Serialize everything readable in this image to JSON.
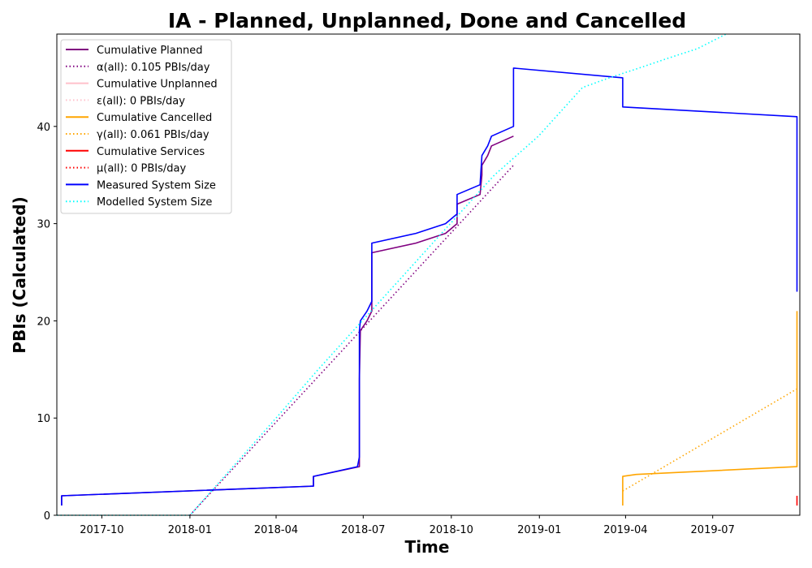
{
  "chart_data": {
    "type": "line",
    "title": "IA - Planned, Unplanned, Done  and Cancelled",
    "xlabel": "Time",
    "ylabel": "PBIs (Calculated)",
    "x_range": [
      "2017-08-15",
      "2019-09-30"
    ],
    "ylim": [
      0,
      49.5
    ],
    "x_ticks": [
      {
        "date": "2017-10-01",
        "label": "2017-10"
      },
      {
        "date": "2018-01-01",
        "label": "2018-01"
      },
      {
        "date": "2018-04-01",
        "label": "2018-04"
      },
      {
        "date": "2018-07-01",
        "label": "2018-07"
      },
      {
        "date": "2018-10-01",
        "label": "2018-10"
      },
      {
        "date": "2019-01-01",
        "label": "2019-01"
      },
      {
        "date": "2019-04-01",
        "label": "2019-04"
      },
      {
        "date": "2019-07-01",
        "label": "2019-07"
      }
    ],
    "y_ticks": [
      0,
      10,
      20,
      30,
      40
    ],
    "grid": false,
    "legend_position": "top-left",
    "series": [
      {
        "name": "Cumulative Planned",
        "style": "solid",
        "color": "#800080",
        "points": [
          [
            "2017-08-20",
            1
          ],
          [
            "2017-08-20",
            2
          ],
          [
            "2018-05-10",
            3
          ],
          [
            "2018-05-10",
            4
          ],
          [
            "2018-06-27",
            5
          ],
          [
            "2018-06-27",
            14
          ],
          [
            "2018-06-28",
            19
          ],
          [
            "2018-07-05",
            20
          ],
          [
            "2018-07-10",
            21
          ],
          [
            "2018-07-10",
            27
          ],
          [
            "2018-08-25",
            28
          ],
          [
            "2018-09-25",
            29
          ],
          [
            "2018-10-07",
            30
          ],
          [
            "2018-10-07",
            32
          ],
          [
            "2018-10-31",
            33
          ],
          [
            "2018-11-02",
            35
          ],
          [
            "2018-11-02",
            36
          ],
          [
            "2018-11-08",
            37
          ],
          [
            "2018-11-12",
            38
          ],
          [
            "2018-12-05",
            39
          ]
        ]
      },
      {
        "name": "α(all): 0.105 PBIs/day",
        "style": "dotted",
        "color": "#800080",
        "points": [
          [
            "2018-01-01",
            0
          ],
          [
            "2018-12-05",
            36
          ]
        ]
      },
      {
        "name": "Cumulative Unplanned",
        "style": "solid",
        "color": "#ffc0cb",
        "points": []
      },
      {
        "name": "ε(all): 0 PBIs/day",
        "style": "dotted",
        "color": "#ffc0cb",
        "points": []
      },
      {
        "name": "Cumulative Cancelled",
        "style": "solid",
        "color": "#ffa500",
        "points": [
          [
            "2019-03-29",
            1
          ],
          [
            "2019-03-29",
            4
          ],
          [
            "2019-04-12",
            4.2
          ],
          [
            "2019-09-27",
            5
          ],
          [
            "2019-09-27",
            21
          ]
        ]
      },
      {
        "name": "γ(all): 0.061 PBIs/day",
        "style": "dotted",
        "color": "#ffa500",
        "points": [
          [
            "2019-03-29",
            2.5
          ],
          [
            "2019-09-27",
            13
          ]
        ]
      },
      {
        "name": "Cumulative Services",
        "style": "solid",
        "color": "#ff0000",
        "points": [
          [
            "2019-09-27",
            1
          ],
          [
            "2019-09-27",
            2
          ]
        ]
      },
      {
        "name": "μ(all): 0 PBIs/day",
        "style": "dotted",
        "color": "#ff0000",
        "points": []
      },
      {
        "name": "Measured System Size",
        "style": "solid",
        "color": "#0000ff",
        "points": [
          [
            "2017-08-20",
            1
          ],
          [
            "2017-08-20",
            2
          ],
          [
            "2018-05-10",
            3
          ],
          [
            "2018-05-10",
            4
          ],
          [
            "2018-06-25",
            5
          ],
          [
            "2018-06-27",
            6
          ],
          [
            "2018-06-27",
            19
          ],
          [
            "2018-06-28",
            20
          ],
          [
            "2018-07-05",
            21
          ],
          [
            "2018-07-10",
            22
          ],
          [
            "2018-07-10",
            28
          ],
          [
            "2018-08-25",
            29
          ],
          [
            "2018-09-25",
            30
          ],
          [
            "2018-10-07",
            31
          ],
          [
            "2018-10-07",
            33
          ],
          [
            "2018-10-31",
            34
          ],
          [
            "2018-11-02",
            37
          ],
          [
            "2018-11-08",
            38
          ],
          [
            "2018-11-12",
            39
          ],
          [
            "2018-12-05",
            40
          ],
          [
            "2018-12-05",
            46
          ],
          [
            "2019-03-29",
            45
          ],
          [
            "2019-03-29",
            42
          ],
          [
            "2019-09-27",
            41
          ],
          [
            "2019-09-27",
            23
          ]
        ]
      },
      {
        "name": "Modelled System Size",
        "style": "dotted",
        "color": "#00ffff",
        "points": [
          [
            "2017-08-15",
            0
          ],
          [
            "2017-12-30",
            0
          ],
          [
            "2018-01-01",
            0
          ],
          [
            "2018-02-15",
            5
          ],
          [
            "2018-04-01",
            10
          ],
          [
            "2018-05-15",
            15
          ],
          [
            "2018-06-30",
            20
          ],
          [
            "2018-08-15",
            25
          ],
          [
            "2018-09-30",
            30
          ],
          [
            "2018-11-15",
            35
          ],
          [
            "2018-12-31",
            39
          ],
          [
            "2019-02-15",
            44
          ],
          [
            "2019-03-15",
            45
          ],
          [
            "2019-04-15",
            46
          ],
          [
            "2019-05-15",
            47
          ],
          [
            "2019-06-15",
            48
          ],
          [
            "2019-07-15",
            49.5
          ]
        ]
      }
    ]
  }
}
